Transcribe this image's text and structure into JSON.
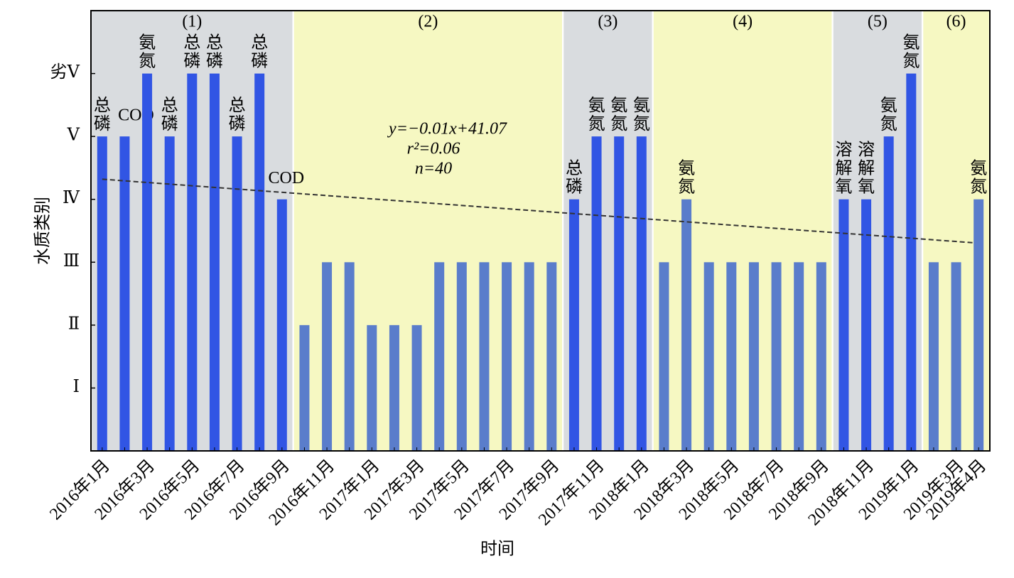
{
  "chart_data": {
    "type": "bar",
    "x_label": "时间",
    "y_label": "水质类别",
    "categories": [
      "2016年1月",
      null,
      "2016年3月",
      null,
      "2016年5月",
      null,
      "2016年7月",
      null,
      "2016年9月",
      null,
      "2016年11月",
      null,
      "2017年1月",
      null,
      "2017年3月",
      null,
      "2017年5月",
      null,
      "2017年7月",
      null,
      "2017年9月",
      null,
      "2017年11月",
      null,
      "2018年1月",
      null,
      "2018年3月",
      null,
      "2018年5月",
      null,
      "2018年7月",
      null,
      "2018年9月",
      null,
      "2018年11月",
      null,
      "2019年1月",
      null,
      "2019年3月",
      "2019年4月"
    ],
    "values": [
      5,
      5,
      6,
      5,
      6,
      6,
      5,
      6,
      4,
      2,
      3,
      3,
      2,
      2,
      2,
      3,
      3,
      3,
      3,
      3,
      3,
      4,
      5,
      5,
      5,
      3,
      4,
      3,
      3,
      3,
      3,
      3,
      3,
      4,
      4,
      5,
      6,
      3,
      3,
      4
    ],
    "value_labels": [
      "总磷",
      "COD",
      "氨氮",
      "总磷",
      "总磷",
      "总磷",
      "总磷",
      "总磷",
      "COD",
      null,
      null,
      null,
      null,
      null,
      null,
      null,
      null,
      null,
      null,
      null,
      null,
      "总磷",
      "氨氮",
      "氨氮",
      "氨氮",
      null,
      "氨氮",
      null,
      null,
      null,
      null,
      null,
      null,
      "溶解氧",
      "溶解氧",
      "氨氮",
      "氨氮",
      null,
      null,
      "氨氮"
    ],
    "regions": [
      {
        "label": "(1)",
        "start": 0,
        "end": 8,
        "color": "#d9dcdf",
        "bar_color": "#3155e4"
      },
      {
        "label": "(2)",
        "start": 9,
        "end": 20,
        "color": "#f6f8c2",
        "bar_color": "#5a7dcb"
      },
      {
        "label": "(3)",
        "start": 21,
        "end": 24,
        "color": "#d9dcdf",
        "bar_color": "#3155e4"
      },
      {
        "label": "(4)",
        "start": 25,
        "end": 32,
        "color": "#f6f8c2",
        "bar_color": "#5a7dcb"
      },
      {
        "label": "(5)",
        "start": 33,
        "end": 36,
        "color": "#d9dcdf",
        "bar_color": "#3155e4"
      },
      {
        "label": "(6)",
        "start": 37,
        "end": 39,
        "color": "#f6f8c2",
        "bar_color": "#5a7dcb"
      }
    ],
    "trend": {
      "start": 4.32,
      "end": 3.31,
      "equation": "y=−0.01x+41.07",
      "r2": "r²=0.06",
      "n": "n=40"
    },
    "ylim": [
      0,
      7
    ],
    "yticks": [
      {
        "value": 1,
        "label": "Ⅰ"
      },
      {
        "value": 2,
        "label": "Ⅱ"
      },
      {
        "value": 3,
        "label": "Ⅲ"
      },
      {
        "value": 4,
        "label": "Ⅳ"
      },
      {
        "value": 5,
        "label": "Ⅴ"
      },
      {
        "value": 6,
        "label": "劣Ⅴ"
      }
    ]
  }
}
